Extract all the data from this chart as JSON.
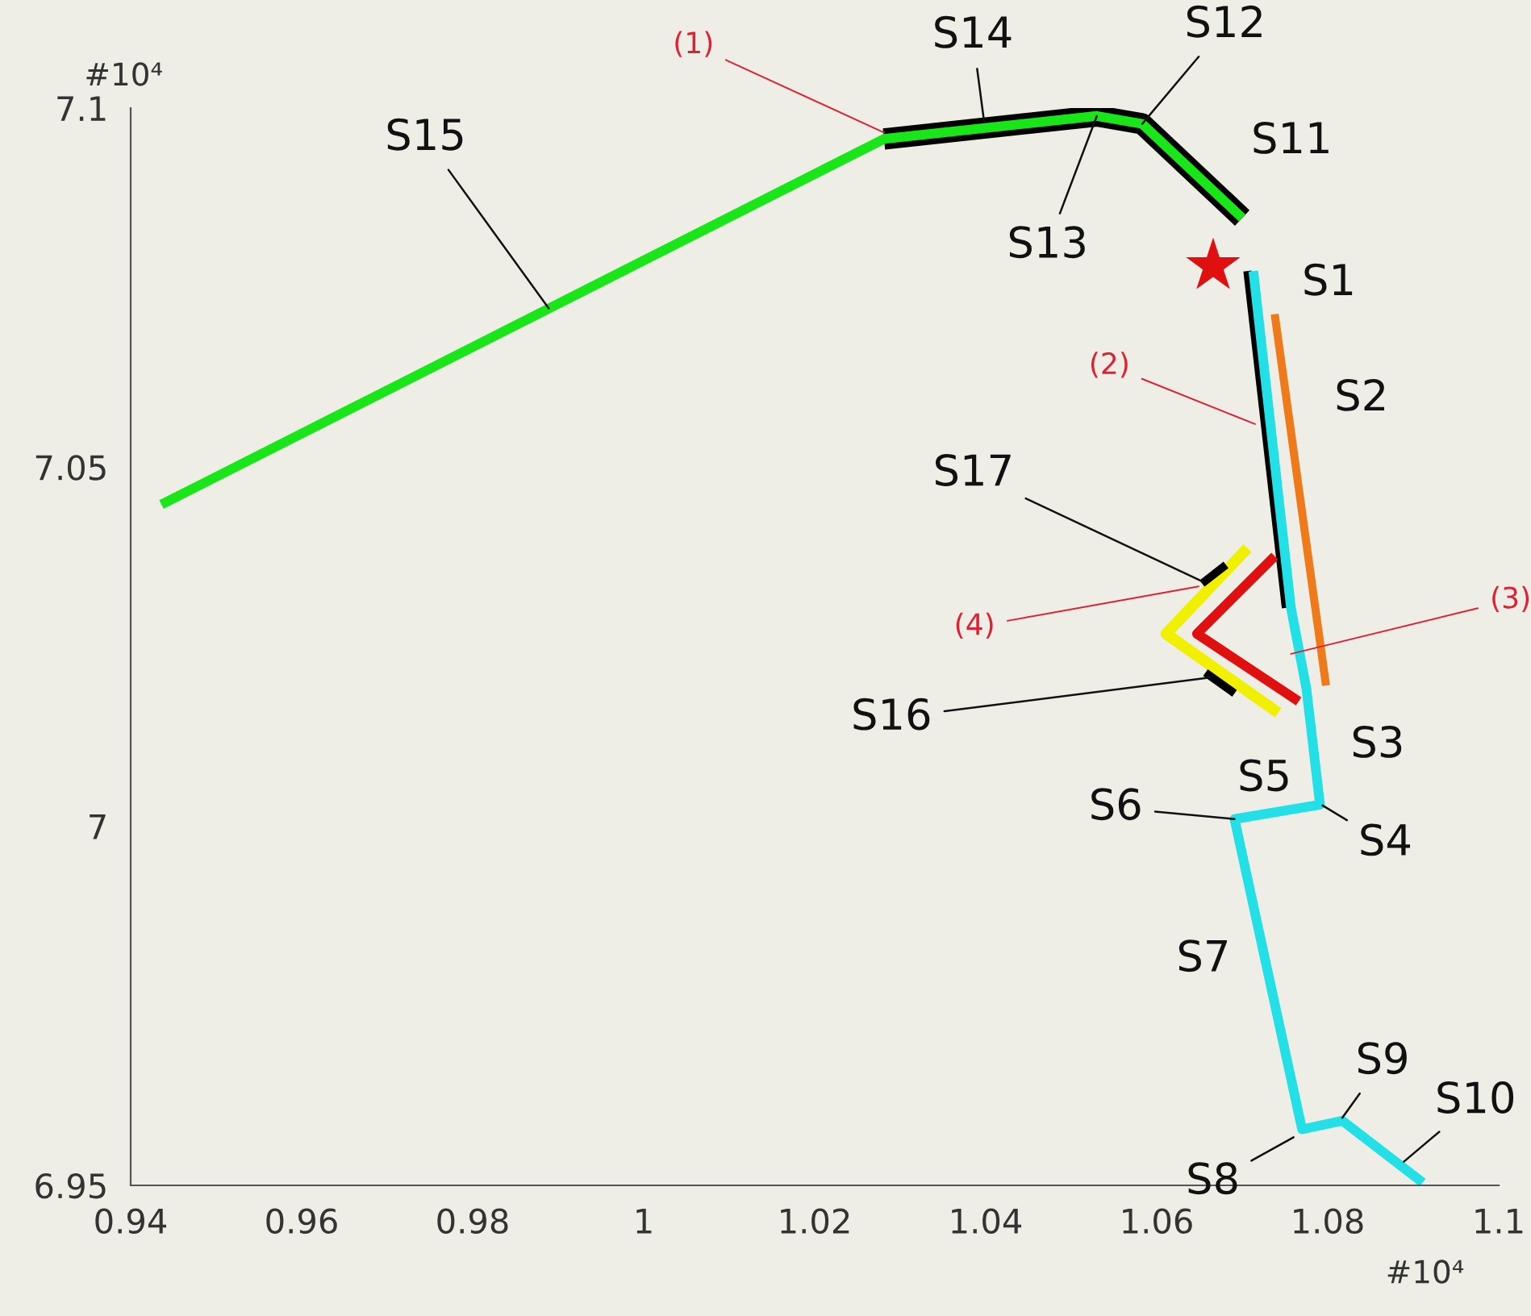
{
  "chart_data": {
    "type": "line",
    "xlim": [
      0.94,
      1.1
    ],
    "ylim": [
      6.95,
      7.1
    ],
    "xticks": [
      0.94,
      0.96,
      0.98,
      1,
      1.02,
      1.04,
      1.06,
      1.08,
      1.1
    ],
    "yticks": [
      6.95,
      7,
      7.05,
      7.1
    ],
    "grid": false,
    "marker": "none",
    "line_style": "solid",
    "series": [
      {
        "color": "#000000",
        "x": [
          1.0281,
          1.053,
          1.0583,
          1.07
        ],
        "values": [
          7.0957,
          7.0989,
          7.0978,
          7.0847
        ]
      },
      {
        "color": "#19e619",
        "x": [
          0.9436,
          1.0281,
          1.053,
          1.0583,
          1.07
        ],
        "values": [
          7.0448,
          7.0957,
          7.0989,
          7.0978,
          7.0847
        ]
      },
      {
        "color": "#000000",
        "x": [
          1.0706,
          1.0751
        ],
        "values": [
          7.0773,
          7.0304
        ]
      },
      {
        "color": "#22e0e6",
        "x": [
          1.0713,
          1.0757,
          1.0775,
          1.0791,
          1.0691,
          1.077,
          1.0817,
          1.0911
        ],
        "values": [
          7.0773,
          7.0304,
          7.0192,
          7.003,
          7.001,
          6.9578,
          6.959,
          6.9504
        ]
      },
      {
        "color": "#ee7a1a",
        "x": [
          1.0738,
          1.0798
        ],
        "values": [
          7.0713,
          7.0196
        ]
      },
      {
        "color": "#f0f000",
        "x": [
          1.0706,
          1.0611,
          1.0742
        ],
        "values": [
          7.0387,
          7.0268,
          7.0158
        ]
      },
      {
        "color": "#e01010",
        "x": [
          1.0738,
          1.0647,
          1.0766
        ],
        "values": [
          7.0376,
          7.0268,
          7.0174
        ]
      },
      {
        "color": "#000000",
        "x": [
          1.0653,
          1.0681
        ],
        "values": [
          7.0338,
          7.0364
        ]
      },
      {
        "color": "#000000",
        "x": [
          1.0657,
          1.0691
        ],
        "values": [
          7.0214,
          7.0185
        ]
      },
      {
        "type": "scatter",
        "marker": "star",
        "color": "#e01010",
        "x": [
          1.0666
        ],
        "values": [
          7.078
        ]
      }
    ],
    "annotations": [
      {
        "text": "S15",
        "x": 0.9889,
        "y": 7.0721
      },
      {
        "text": "(1)",
        "x": 1.0281,
        "y": 7.0966
      },
      {
        "text": "S14",
        "x": 1.0398,
        "y": 7.0982
      },
      {
        "text": "S12",
        "x": 1.0583,
        "y": 7.0978
      },
      {
        "text": "S13",
        "x": 1.053,
        "y": 7.0989
      },
      {
        "text": "S11",
        "x": 1.0653,
        "y": 7.0891
      },
      {
        "text": "S1",
        "x": 1.0728,
        "y": 7.0756
      },
      {
        "text": "(2)",
        "x": 1.0715,
        "y": 7.056
      },
      {
        "text": "S2",
        "x": 1.0766,
        "y": 7.0589
      },
      {
        "text": "S17",
        "x": 1.0653,
        "y": 7.0341
      },
      {
        "text": "(4)",
        "x": 1.0649,
        "y": 7.0334
      },
      {
        "text": "(3)",
        "x": 1.0757,
        "y": 7.024
      },
      {
        "text": "S16",
        "x": 1.0662,
        "y": 7.0207
      },
      {
        "text": "S3",
        "x": 1.0785,
        "y": 7.0128
      },
      {
        "text": "S5",
        "x": 1.0747,
        "y": 7.0019
      },
      {
        "text": "S4",
        "x": 1.0794,
        "y": 7.0029
      },
      {
        "text": "S6",
        "x": 1.0691,
        "y": 7.001
      },
      {
        "text": "S7",
        "x": 1.0728,
        "y": 6.9802
      },
      {
        "text": "S9",
        "x": 1.0817,
        "y": 6.9594
      },
      {
        "text": "S10",
        "x": 1.0889,
        "y": 6.9533
      },
      {
        "text": "S8",
        "x": 1.076,
        "y": 6.9567
      },
      "#10⁴",
      "#10⁴"
    ]
  }
}
